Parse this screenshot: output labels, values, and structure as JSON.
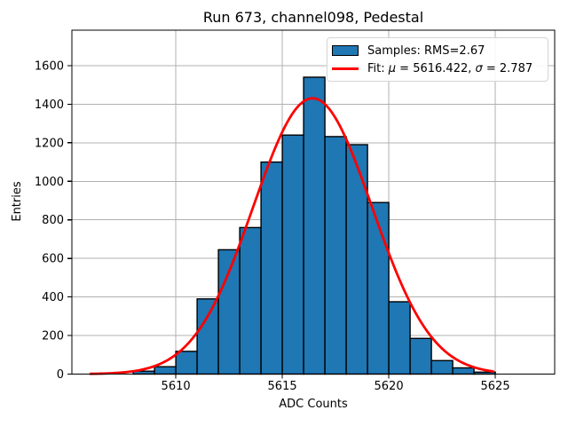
{
  "colors": {
    "bar_fill": "#1f77b4",
    "bar_edge": "#000000",
    "fit_line": "#ff0000",
    "grid": "#b0b0b0",
    "axis": "#000000",
    "legend_border": "#d5d5d5",
    "background": "#ffffff"
  },
  "chart_data": {
    "type": "bar",
    "subtype": "histogram",
    "title": "Run 673, channel098, Pedestal",
    "xlabel": "ADC Counts",
    "ylabel": "Entries",
    "bin_width": 1,
    "bin_left_edges": [
      5608,
      5609,
      5610,
      5611,
      5612,
      5613,
      5614,
      5615,
      5616,
      5617,
      5618,
      5619,
      5620,
      5621,
      5622,
      5623,
      5624
    ],
    "values": [
      15,
      38,
      118,
      390,
      645,
      760,
      1100,
      1240,
      1540,
      1232,
      1190,
      890,
      375,
      185,
      70,
      32,
      10
    ],
    "fit_curve": {
      "type": "gaussian",
      "mu": 5616.422,
      "sigma": 2.787,
      "amplitude": 1431,
      "x_start": 5606.0,
      "x_end": 5624.9
    },
    "stats": {
      "rms": 2.67,
      "fit_mu": 5616.422,
      "fit_sigma": 2.787
    },
    "xlim": [
      5605.12,
      5627.79
    ],
    "ylim": [
      0,
      1784
    ],
    "xticks": [
      5610,
      5615,
      5620,
      5625
    ],
    "yticks": [
      0,
      200,
      400,
      600,
      800,
      1000,
      1200,
      1400,
      1600
    ],
    "grid": true,
    "legend": {
      "position": "upper right",
      "entries": [
        {
          "swatch": "patch",
          "label": "Samples: RMS=2.67"
        },
        {
          "swatch": "line",
          "label": "Fit: μ = 5616.422, σ = 2.787"
        }
      ]
    }
  }
}
